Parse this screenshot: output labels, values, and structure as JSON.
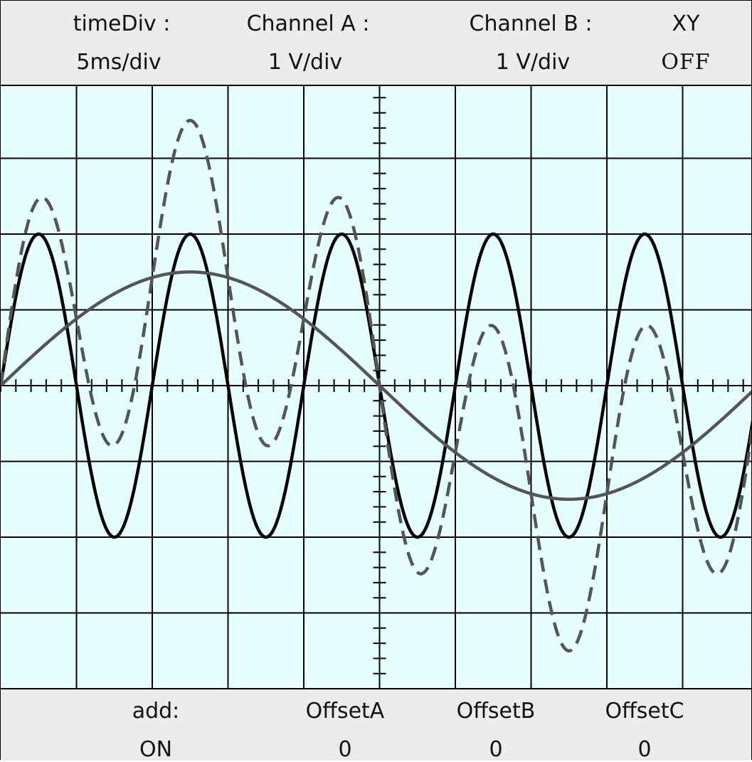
{
  "header": {
    "time_div_label": "timeDiv :",
    "time_div_value": "5ms/div",
    "channel_a_label": "Channel A :",
    "channel_a_value": "1 V/div",
    "channel_b_label": "Channel B :",
    "channel_b_value": "1 V/div",
    "xy_label": "XY",
    "xy_value": "OFF"
  },
  "footer": {
    "add_label": "add:",
    "add_value": "ON",
    "offset_a_label": "OffsetA",
    "offset_a_value": "0",
    "offset_b_label": "OffsetB",
    "offset_b_value": "0",
    "offset_c_label": "OffsetC",
    "offset_c_value": "0"
  },
  "screen_color": "#e6ffff",
  "chart_data": {
    "type": "line",
    "title": "",
    "xlabel": "",
    "ylabel": "",
    "x_divisions": 10,
    "y_divisions": 8,
    "grid": true,
    "series": [
      {
        "style": "solid",
        "color": "#000000",
        "amplitude_div": 2.0,
        "cycles_per_screen": 5
      },
      {
        "style": "solid",
        "color": "#555555",
        "amplitude_div": 1.5,
        "cycles_per_screen": 1
      },
      {
        "style": "dashed",
        "color": "#555555",
        "sum_of_series": [
          0,
          1
        ]
      }
    ]
  }
}
